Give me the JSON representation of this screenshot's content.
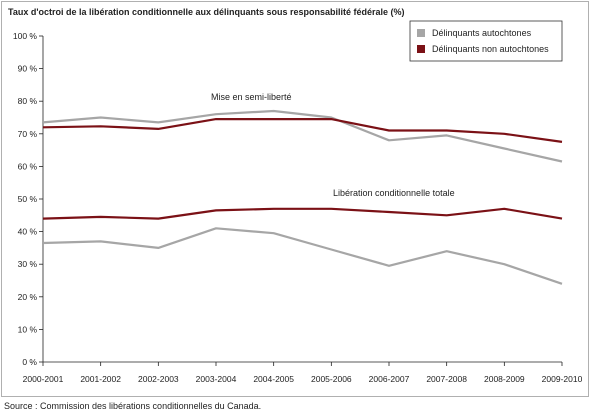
{
  "chart_data": {
    "type": "line",
    "title": "Taux d'octroi de la libération conditionnelle aux délinquants sous responsabilité fédérale (%)",
    "categories": [
      "2000-2001",
      "2001-2002",
      "2002-2003",
      "2003-2004",
      "2004-2005",
      "2005-2006",
      "2006-2007",
      "2007-2008",
      "2008-2009",
      "2009-2010"
    ],
    "ylim": [
      0,
      100
    ],
    "yticks": [
      0,
      10,
      20,
      30,
      40,
      50,
      60,
      70,
      80,
      90,
      100
    ],
    "ytick_labels": [
      "0 %",
      "10 %",
      "20 %",
      "30 %",
      "40 %",
      "50 %",
      "60 %",
      "70 %",
      "80 %",
      "90 %",
      "100 %"
    ],
    "grid": false,
    "legend_position": "top-right",
    "legend": [
      "Délinquants autochtones",
      "Délinquants non autochtones"
    ],
    "colors": {
      "autochtones": "#a6a6a6",
      "non_autochtones": "#7b1116"
    },
    "series": [
      {
        "name": "Délinquants autochtones",
        "group": "Mise en semi-liberté",
        "color": "#a6a6a6",
        "values": [
          73.5,
          75,
          73.5,
          76,
          77,
          75,
          68,
          69.5,
          65.5,
          61.5
        ]
      },
      {
        "name": "Délinquants non autochtones",
        "group": "Mise en semi-liberté",
        "color": "#7b1116",
        "values": [
          72,
          72.3,
          71.5,
          74.5,
          74.5,
          74.5,
          71,
          71,
          70,
          67.5
        ]
      },
      {
        "name": "Délinquants autochtones",
        "group": "Libération conditionnelle totale",
        "color": "#a6a6a6",
        "values": [
          36.5,
          37,
          35,
          41,
          39.5,
          34.5,
          29.5,
          34,
          30,
          24
        ]
      },
      {
        "name": "Délinquants non autochtones",
        "group": "Libération conditionnelle totale",
        "color": "#7b1116",
        "values": [
          44,
          44.5,
          44,
          46.5,
          47,
          47,
          46,
          45,
          47,
          44
        ]
      }
    ],
    "annotations": [
      "Mise en semi-liberté",
      "Libération conditionnelle totale"
    ],
    "source": "Source : Commission des libérations conditionnelles du Canada."
  }
}
